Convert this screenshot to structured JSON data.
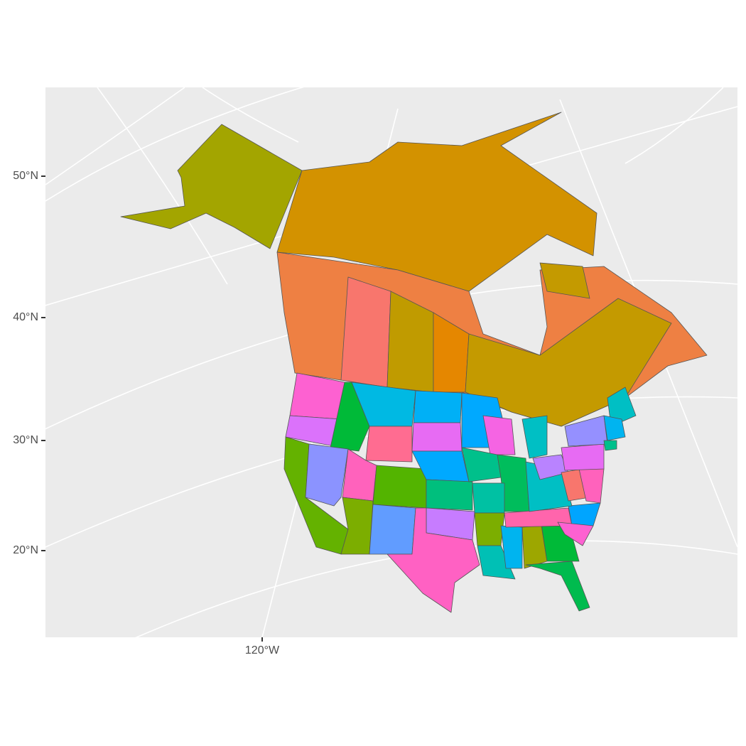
{
  "axis": {
    "y_labels": [
      "50°N",
      "40°N",
      "30°N",
      "20°N"
    ],
    "x_labels": [
      "120°W"
    ]
  }
}
